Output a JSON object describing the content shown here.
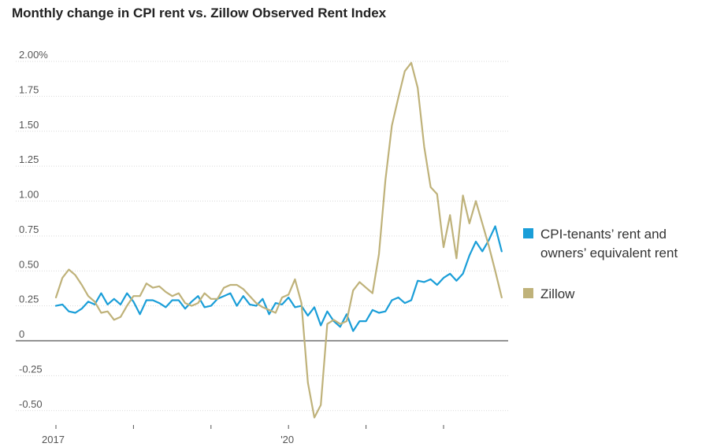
{
  "chart_data": {
    "type": "line",
    "title": "Monthly change in CPI rent vs. Zillow Observed Rent Index",
    "xlabel": "",
    "ylabel": "",
    "ylim": [
      -0.6,
      2.1
    ],
    "y_ticks": [
      {
        "value": 2.0,
        "label": "2.00%"
      },
      {
        "value": 1.75,
        "label": "1.75"
      },
      {
        "value": 1.5,
        "label": "1.50"
      },
      {
        "value": 1.25,
        "label": "1.25"
      },
      {
        "value": 1.0,
        "label": "1.00"
      },
      {
        "value": 0.75,
        "label": "0.75"
      },
      {
        "value": 0.5,
        "label": "0.50"
      },
      {
        "value": 0.25,
        "label": "0.25"
      },
      {
        "value": 0,
        "label": "0"
      },
      {
        "value": -0.25,
        "label": "-0.25"
      },
      {
        "value": -0.5,
        "label": "-0.50"
      }
    ],
    "x_ticks": [
      {
        "year": 2017,
        "label": "2017"
      },
      {
        "year": 2018,
        "label": ""
      },
      {
        "year": 2019,
        "label": ""
      },
      {
        "year": 2020,
        "label": "'20"
      },
      {
        "year": 2021,
        "label": ""
      },
      {
        "year": 2022,
        "label": ""
      }
    ],
    "x_start": "2017-01",
    "series": [
      {
        "name": "CPI-tenants’ rent and owners’ equivalent rent",
        "legend_lines": [
          "CPI-tenants’ rent and",
          "owners’ equivalent rent"
        ],
        "color": "#1a9ed8",
        "values": [
          0.25,
          0.26,
          0.21,
          0.2,
          0.23,
          0.28,
          0.26,
          0.34,
          0.26,
          0.3,
          0.26,
          0.34,
          0.28,
          0.19,
          0.29,
          0.29,
          0.27,
          0.24,
          0.29,
          0.29,
          0.23,
          0.28,
          0.32,
          0.24,
          0.25,
          0.3,
          0.32,
          0.34,
          0.25,
          0.32,
          0.26,
          0.25,
          0.3,
          0.19,
          0.27,
          0.26,
          0.31,
          0.24,
          0.25,
          0.18,
          0.24,
          0.11,
          0.21,
          0.14,
          0.1,
          0.19,
          0.07,
          0.14,
          0.14,
          0.22,
          0.2,
          0.21,
          0.29,
          0.31,
          0.27,
          0.29,
          0.43,
          0.42,
          0.44,
          0.4,
          0.45,
          0.48,
          0.43,
          0.48,
          0.61,
          0.71,
          0.64,
          0.72,
          0.82,
          0.64
        ]
      },
      {
        "name": "Zillow",
        "legend_lines": [
          "Zillow"
        ],
        "color": "#bfb27a",
        "values": [
          0.31,
          0.45,
          0.51,
          0.47,
          0.4,
          0.32,
          0.28,
          0.2,
          0.21,
          0.15,
          0.17,
          0.25,
          0.32,
          0.32,
          0.41,
          0.38,
          0.39,
          0.35,
          0.32,
          0.34,
          0.27,
          0.25,
          0.27,
          0.34,
          0.3,
          0.3,
          0.38,
          0.4,
          0.4,
          0.37,
          0.32,
          0.27,
          0.24,
          0.22,
          0.2,
          0.31,
          0.33,
          0.44,
          0.27,
          -0.3,
          -0.55,
          -0.46,
          0.12,
          0.15,
          0.12,
          0.14,
          0.36,
          0.42,
          0.38,
          0.34,
          0.62,
          1.15,
          1.54,
          1.74,
          1.93,
          1.99,
          1.81,
          1.39,
          1.1,
          1.05,
          0.67,
          0.9,
          0.59,
          1.04,
          0.84,
          1.0,
          0.84,
          0.68,
          0.5,
          0.31
        ]
      }
    ],
    "grid": true,
    "legend_placement": "right"
  }
}
